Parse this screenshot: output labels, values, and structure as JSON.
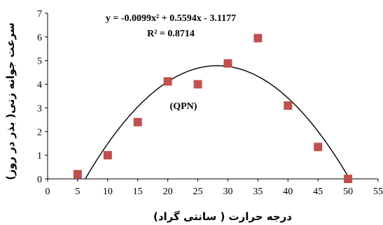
{
  "chart_data": {
    "type": "scatter",
    "xlabel": "درجه حرارت ( سانتی گراد)",
    "ylabel": "سرعت جوانه زنی( بذر در روز)",
    "xlim": [
      0,
      55
    ],
    "ylim": [
      0,
      7
    ],
    "x_ticks": [
      "0",
      "5",
      "10",
      "15",
      "20",
      "25",
      "30",
      "35",
      "40",
      "45",
      "50",
      "55"
    ],
    "y_ticks": [
      "0",
      "1",
      "2",
      "3",
      "4",
      "5",
      "6",
      "7"
    ],
    "grid": false,
    "marker_color": "#c0504d",
    "trendline_color": "#000000",
    "series": [
      {
        "x": [
          5,
          10,
          15,
          20,
          25,
          30,
          35,
          40,
          45,
          50
        ],
        "y": [
          0.2,
          1.0,
          2.4,
          4.12,
          4.0,
          4.88,
          5.95,
          3.1,
          1.35,
          0.0
        ]
      }
    ],
    "trendline": {
      "type": "polynomial",
      "coefficients": [
        -0.0099,
        0.5594,
        -3.1177
      ]
    },
    "annotations": {
      "equation": "y = -0.0099x² + 0.5594x - 3.1177",
      "r_squared": "R² = 0.8714",
      "label": "(QPN)"
    }
  }
}
